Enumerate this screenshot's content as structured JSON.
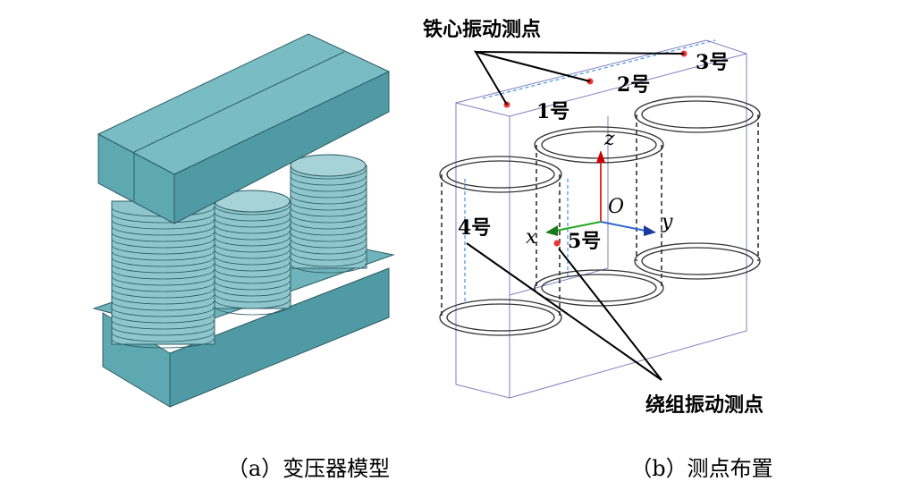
{
  "left_panel": {
    "caption": "（a）变压器模型"
  },
  "right_panel": {
    "caption": "（b）测点布置",
    "core_label": "铁心振动测点",
    "winding_label": "绕组振动测点",
    "points": [
      "1号",
      "2号",
      "3号",
      "4号",
      "5号"
    ],
    "axes": {
      "x": "x",
      "y": "y",
      "z": "z",
      "origin": "O"
    }
  }
}
